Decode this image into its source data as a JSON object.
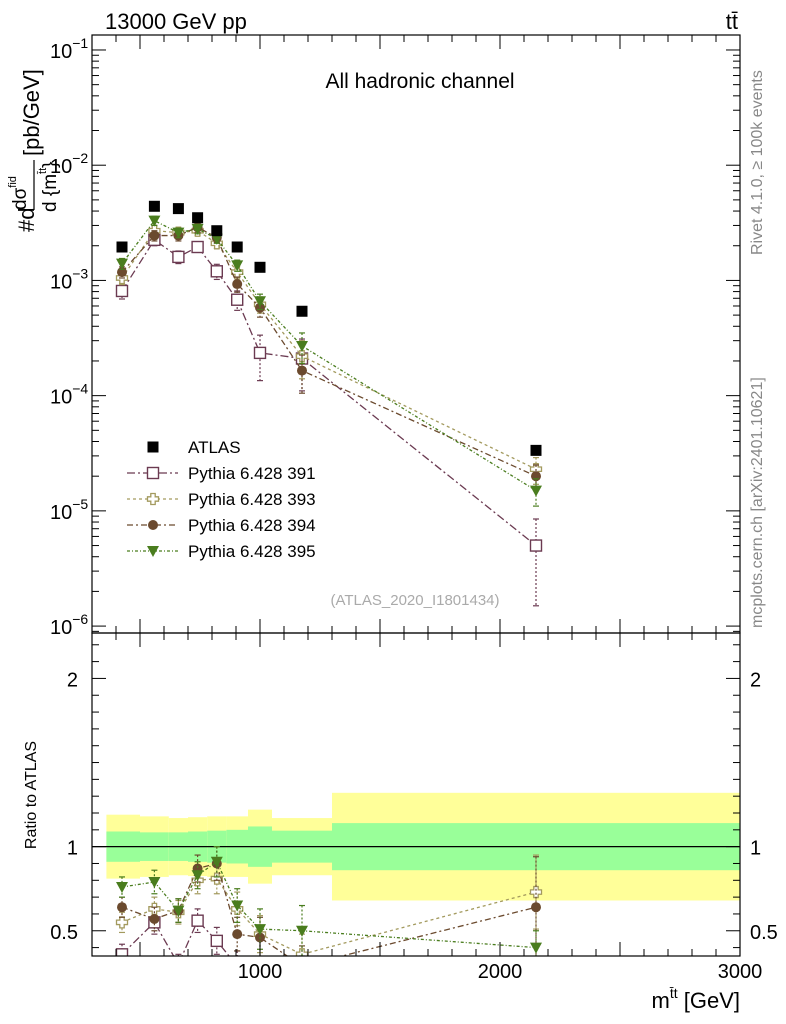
{
  "header": {
    "left": "13000 GeV pp",
    "right": "tt̄"
  },
  "side": {
    "rivet": "Rivet 4.1.0, ≥ 100k events",
    "mcplots": "mcplots.cern.ch [arXiv:2401.10621]"
  },
  "chart_data": {
    "type": "scatter",
    "title": "All hadronic channel",
    "analysis": "(ATLAS_2020_I1801434)",
    "ylabel_main": "#d dσ / d {m tt} [pb/GeV]",
    "ylabel_main_parts": [
      "#d",
      "dσ",
      "fid",
      "d {m",
      "t̄t",
      "}",
      "[pb/GeV]"
    ],
    "ylabel_ratio": "Ratio to ATLAS",
    "xlabel": "m",
    "xlabel_sup": "t̄t",
    "xlabel_unit": " [GeV]",
    "xlim": [
      300,
      3000
    ],
    "ylim_main_log10": [
      -6.06,
      -0.87
    ],
    "ylim_ratio": [
      0.35,
      2.27
    ],
    "xticks": [
      1000,
      2000,
      3000
    ],
    "yticks_main": [
      {
        "base": "10",
        "exp": "−1",
        "v": -1
      },
      {
        "base": "10",
        "exp": "−2",
        "v": -2
      },
      {
        "base": "10",
        "exp": "−3",
        "v": -3
      },
      {
        "base": "10",
        "exp": "−4",
        "v": -4
      },
      {
        "base": "10",
        "exp": "−5",
        "v": -5
      },
      {
        "base": "10",
        "exp": "−6",
        "v": -6
      }
    ],
    "yticks_ratio": [
      {
        "label": "2",
        "v": 2
      },
      {
        "label": "1",
        "v": 1
      },
      {
        "label": "0.5",
        "v": 0.5
      }
    ],
    "bins": [
      {
        "lo": 360,
        "hi": 500,
        "stat": 0.09,
        "tot": 0.19
      },
      {
        "lo": 500,
        "hi": 620,
        "stat": 0.085,
        "tot": 0.18
      },
      {
        "lo": 620,
        "hi": 700,
        "stat": 0.085,
        "tot": 0.17
      },
      {
        "lo": 700,
        "hi": 780,
        "stat": 0.09,
        "tot": 0.175
      },
      {
        "lo": 780,
        "hi": 860,
        "stat": 0.095,
        "tot": 0.18
      },
      {
        "lo": 860,
        "hi": 950,
        "stat": 0.1,
        "tot": 0.18
      },
      {
        "lo": 950,
        "hi": 1050,
        "stat": 0.12,
        "tot": 0.22
      },
      {
        "lo": 1050,
        "hi": 1300,
        "stat": 0.095,
        "tot": 0.17
      },
      {
        "lo": 1300,
        "hi": 3000,
        "stat": 0.14,
        "tot": 0.32
      }
    ],
    "data": {
      "name": "ATLAS",
      "color": "#000000",
      "x": [
        425,
        560,
        660,
        740,
        820,
        905,
        1000,
        1175,
        2150
      ],
      "y": [
        0.00195,
        0.0044,
        0.0042,
        0.0035,
        0.0027,
        0.00195,
        0.0013,
        0.00054,
        3.35e-05
      ]
    },
    "series": [
      {
        "name": "Pythia 6.428 391",
        "color": "#6b3a51",
        "marker": "open-square",
        "dash": "8,3,2,3",
        "x": [
          425,
          560,
          660,
          740,
          820,
          905,
          1000,
          1175,
          2150
        ],
        "y": [
          0.00081,
          0.00225,
          0.0016,
          0.00195,
          0.0012,
          0.00068,
          0.000235,
          0.00021,
          5e-06
        ],
        "yerr": [
          0.00012,
          0.00025,
          0.0002,
          0.0002,
          0.00018,
          0.00013,
          0.0001,
          0.0001,
          3.5e-06
        ],
        "ratio": [
          0.36,
          0.55,
          0.3,
          0.56,
          0.44,
          0.29,
          0.2,
          0.22,
          0.15
        ],
        "rerr": [
          0.06,
          0.07,
          0.06,
          0.07,
          0.08,
          0.09,
          0.1,
          0.12,
          0.15
        ]
      },
      {
        "name": "Pythia 6.428 393",
        "color": "#a39a5e",
        "marker": "open-cross",
        "dash": "3,3",
        "x": [
          425,
          560,
          660,
          740,
          820,
          905,
          1000,
          1175,
          2150
        ],
        "y": [
          0.00105,
          0.0027,
          0.0026,
          0.0027,
          0.0021,
          0.00118,
          0.00062,
          0.00022,
          2.3e-05
        ],
        "yerr": [
          0.00013,
          0.00025,
          0.00025,
          0.00025,
          0.0002,
          0.00015,
          0.0001,
          8e-05,
          6e-06
        ],
        "ratio": [
          0.55,
          0.63,
          0.61,
          0.8,
          0.81,
          0.63,
          0.48,
          0.36,
          0.73
        ],
        "rerr": [
          0.06,
          0.07,
          0.07,
          0.08,
          0.09,
          0.1,
          0.11,
          0.12,
          0.22
        ]
      },
      {
        "name": "Pythia 6.428 394",
        "color": "#6b4a2e",
        "marker": "filled-circle",
        "dash": "6,3,2,3",
        "x": [
          425,
          560,
          660,
          740,
          820,
          905,
          1000,
          1175,
          2150
        ],
        "y": [
          0.00118,
          0.00245,
          0.00245,
          0.0029,
          0.00235,
          0.00093,
          0.00058,
          0.000165,
          2e-05
        ],
        "yerr": [
          0.00013,
          0.00025,
          0.00025,
          0.00028,
          0.00022,
          0.00014,
          0.0001,
          6e-05,
          5e-06
        ],
        "ratio": [
          0.64,
          0.57,
          0.62,
          0.87,
          0.9,
          0.48,
          0.46,
          0.29,
          0.64
        ],
        "rerr": [
          0.06,
          0.07,
          0.07,
          0.08,
          0.1,
          0.1,
          0.12,
          0.12,
          0.3
        ]
      },
      {
        "name": "Pythia 6.428 395",
        "color": "#4a7d1e",
        "marker": "filled-triangle",
        "dash": "3,2,1,2",
        "x": [
          425,
          560,
          660,
          740,
          820,
          905,
          1000,
          1175,
          2150
        ],
        "y": [
          0.0014,
          0.0033,
          0.0026,
          0.0028,
          0.0023,
          0.00135,
          0.00066,
          0.00027,
          1.5e-05
        ],
        "yerr": [
          0.00015,
          0.0003,
          0.00025,
          0.00026,
          0.0002,
          0.00015,
          0.0001,
          8e-05,
          4e-06
        ],
        "ratio": [
          0.76,
          0.79,
          0.62,
          0.83,
          0.91,
          0.65,
          0.51,
          0.5,
          0.4
        ],
        "rerr": [
          0.06,
          0.07,
          0.07,
          0.08,
          0.09,
          0.1,
          0.12,
          0.15,
          0.1
        ]
      }
    ],
    "colors": {
      "band_inner": "#99ff99",
      "band_outer": "#ffff99"
    }
  }
}
